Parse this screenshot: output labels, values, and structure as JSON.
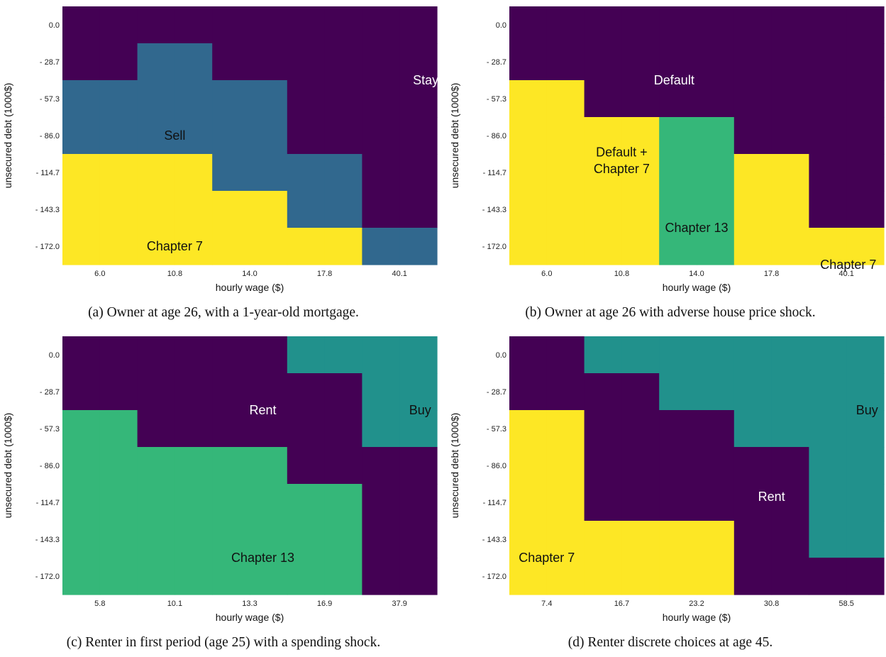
{
  "colors": {
    "Stay": "#440154",
    "Sell": "#31688e",
    "Chapter 7": "#fde725",
    "Default": "#440154",
    "Default + Chapter 7": "#fde725",
    "Chapter 13": "#35b779",
    "Rent": "#440154",
    "Buy": "#21918c"
  },
  "chart_data": [
    {
      "type": "heatmap",
      "caption": "(a) Owner at age 26, with a 1-year-old mortgage.",
      "xlabel": "hourly wage ($)",
      "ylabel": "unsecured debt (1000$)",
      "x_ticks": [
        "6.0",
        "10.8",
        "14.0",
        "17.8",
        "40.1"
      ],
      "y_ticks": [
        "0.0",
        "- 28.7",
        "- 57.3",
        "- 86.0",
        "- 114.7",
        "- 143.3",
        "- 172.0"
      ],
      "categories": [
        "Stay",
        "Sell",
        "Chapter 7"
      ],
      "grid": [
        [
          "Stay",
          "Stay",
          "Stay",
          "Stay",
          "Stay",
          "Stay",
          "Stay",
          "Stay",
          "Stay",
          "Stay"
        ],
        [
          "Stay",
          "Stay",
          "Sell",
          "Sell",
          "Stay",
          "Stay",
          "Stay",
          "Stay",
          "Stay",
          "Stay"
        ],
        [
          "Sell",
          "Sell",
          "Sell",
          "Sell",
          "Sell",
          "Sell",
          "Stay",
          "Stay",
          "Stay",
          "Stay"
        ],
        [
          "Sell",
          "Sell",
          "Sell",
          "Sell",
          "Sell",
          "Sell",
          "Stay",
          "Stay",
          "Stay",
          "Stay"
        ],
        [
          "Chapter 7",
          "Chapter 7",
          "Chapter 7",
          "Chapter 7",
          "Sell",
          "Sell",
          "Sell",
          "Sell",
          "Stay",
          "Stay"
        ],
        [
          "Chapter 7",
          "Chapter 7",
          "Chapter 7",
          "Chapter 7",
          "Chapter 7",
          "Chapter 7",
          "Sell",
          "Sell",
          "Stay",
          "Stay"
        ],
        [
          "Chapter 7",
          "Chapter 7",
          "Chapter 7",
          "Chapter 7",
          "Chapter 7",
          "Chapter 7",
          "Chapter 7",
          "Chapter 7",
          "Sell",
          "Sell"
        ]
      ],
      "annotations": [
        {
          "text": "Stay",
          "x": "40.1",
          "y": "- 28.7",
          "color": "#ffffff"
        },
        {
          "text": "Sell",
          "x": "10.8",
          "y": "- 86.0",
          "color": "#111111"
        },
        {
          "text": "Chapter 7",
          "x": "10.8",
          "y": "- 172.0",
          "color": "#111111"
        }
      ]
    },
    {
      "type": "heatmap",
      "caption": "(b) Owner at age 26 with adverse house price shock.",
      "xlabel": "hourly wage ($)",
      "ylabel": "unsecured debt (1000$)",
      "x_ticks": [
        "6.0",
        "10.8",
        "14.0",
        "17.8",
        "40.1"
      ],
      "y_ticks": [
        "0.0",
        "- 28.7",
        "- 57.3",
        "- 86.0",
        "- 114.7",
        "- 143.3",
        "- 172.0"
      ],
      "categories": [
        "Default",
        "Default + Chapter 7",
        "Chapter 13",
        "Chapter 7"
      ],
      "grid": [
        [
          "Default",
          "Default",
          "Default",
          "Default",
          "Default",
          "Default",
          "Default",
          "Default",
          "Default",
          "Default"
        ],
        [
          "Default",
          "Default",
          "Default",
          "Default",
          "Default",
          "Default",
          "Default",
          "Default",
          "Default",
          "Default"
        ],
        [
          "Default + Chapter 7",
          "Default + Chapter 7",
          "Default",
          "Default",
          "Default",
          "Default",
          "Default",
          "Default",
          "Default",
          "Default"
        ],
        [
          "Default + Chapter 7",
          "Default + Chapter 7",
          "Default + Chapter 7",
          "Default + Chapter 7",
          "Chapter 13",
          "Chapter 13",
          "Default",
          "Default",
          "Default",
          "Default"
        ],
        [
          "Default + Chapter 7",
          "Default + Chapter 7",
          "Default + Chapter 7",
          "Default + Chapter 7",
          "Chapter 13",
          "Chapter 13",
          "Chapter 7",
          "Chapter 7",
          "Default",
          "Default"
        ],
        [
          "Default + Chapter 7",
          "Default + Chapter 7",
          "Default + Chapter 7",
          "Default + Chapter 7",
          "Chapter 13",
          "Chapter 13",
          "Chapter 7",
          "Chapter 7",
          "Default",
          "Default"
        ],
        [
          "Default + Chapter 7",
          "Default + Chapter 7",
          "Default + Chapter 7",
          "Default + Chapter 7",
          "Chapter 13",
          "Chapter 13",
          "Chapter 7",
          "Chapter 7",
          "Chapter 7",
          "Chapter 7"
        ]
      ],
      "annotations": [
        {
          "text": "Default",
          "x": "14.0",
          "y": "- 28.7",
          "color": "#ffffff"
        },
        {
          "text": "Default +",
          "x": "10.8",
          "y": "- 114.7",
          "color": "#111111"
        },
        {
          "text": "Chapter 7",
          "x": "10.8",
          "y": "- 114.7",
          "color": "#111111"
        },
        {
          "text": "Chapter 13",
          "x": "14.0",
          "y": "- 143.3",
          "color": "#111111"
        },
        {
          "text": "Chapter 7",
          "x": "40.1",
          "y": "- 172.0",
          "color": "#111111"
        }
      ]
    },
    {
      "type": "heatmap",
      "caption": "(c) Renter in first period (age 25) with a spending shock.",
      "xlabel": "hourly wage ($)",
      "ylabel": "unsecured debt (1000$)",
      "x_ticks": [
        "5.8",
        "10.1",
        "13.3",
        "16.9",
        "37.9"
      ],
      "y_ticks": [
        "0.0",
        "- 28.7",
        "- 57.3",
        "- 86.0",
        "- 114.7",
        "- 143.3",
        "- 172.0"
      ],
      "categories": [
        "Rent",
        "Buy",
        "Chapter 13"
      ],
      "grid": [
        [
          "Rent",
          "Rent",
          "Rent",
          "Rent",
          "Rent",
          "Rent",
          "Buy",
          "Buy",
          "Buy",
          "Buy"
        ],
        [
          "Rent",
          "Rent",
          "Rent",
          "Rent",
          "Rent",
          "Rent",
          "Rent",
          "Rent",
          "Buy",
          "Buy"
        ],
        [
          "Chapter 13",
          "Chapter 13",
          "Rent",
          "Rent",
          "Rent",
          "Rent",
          "Rent",
          "Rent",
          "Buy",
          "Buy"
        ],
        [
          "Chapter 13",
          "Chapter 13",
          "Chapter 13",
          "Chapter 13",
          "Chapter 13",
          "Chapter 13",
          "Rent",
          "Rent",
          "Rent",
          "Rent"
        ],
        [
          "Chapter 13",
          "Chapter 13",
          "Chapter 13",
          "Chapter 13",
          "Chapter 13",
          "Chapter 13",
          "Chapter 13",
          "Chapter 13",
          "Rent",
          "Rent"
        ],
        [
          "Chapter 13",
          "Chapter 13",
          "Chapter 13",
          "Chapter 13",
          "Chapter 13",
          "Chapter 13",
          "Chapter 13",
          "Chapter 13",
          "Rent",
          "Rent"
        ],
        [
          "Chapter 13",
          "Chapter 13",
          "Chapter 13",
          "Chapter 13",
          "Chapter 13",
          "Chapter 13",
          "Chapter 13",
          "Chapter 13",
          "Rent",
          "Rent"
        ]
      ],
      "annotations": [
        {
          "text": "Rent",
          "x": "13.3",
          "y": "- 28.7",
          "color": "#ffffff"
        },
        {
          "text": "Buy",
          "x": "37.9",
          "y": "- 28.7",
          "color": "#111111"
        },
        {
          "text": "Chapter 13",
          "x": "13.3",
          "y": "- 143.3",
          "color": "#111111"
        }
      ]
    },
    {
      "type": "heatmap",
      "caption": "(d) Renter discrete choices at age 45.",
      "xlabel": "hourly wage ($)",
      "ylabel": "unsecured debt (1000$)",
      "x_ticks": [
        "7.4",
        "16.7",
        "23.2",
        "30.8",
        "58.5"
      ],
      "y_ticks": [
        "0.0",
        "- 28.7",
        "- 57.3",
        "- 86.0",
        "- 114.7",
        "- 143.3",
        "- 172.0"
      ],
      "categories": [
        "Rent",
        "Buy",
        "Chapter 7"
      ],
      "grid": [
        [
          "Rent",
          "Rent",
          "Buy",
          "Buy",
          "Buy",
          "Buy",
          "Buy",
          "Buy",
          "Buy",
          "Buy"
        ],
        [
          "Rent",
          "Rent",
          "Rent",
          "Rent",
          "Buy",
          "Buy",
          "Buy",
          "Buy",
          "Buy",
          "Buy"
        ],
        [
          "Chapter 7",
          "Chapter 7",
          "Rent",
          "Rent",
          "Rent",
          "Rent",
          "Buy",
          "Buy",
          "Buy",
          "Buy"
        ],
        [
          "Chapter 7",
          "Chapter 7",
          "Rent",
          "Rent",
          "Rent",
          "Rent",
          "Rent",
          "Rent",
          "Buy",
          "Buy"
        ],
        [
          "Chapter 7",
          "Chapter 7",
          "Rent",
          "Rent",
          "Rent",
          "Rent",
          "Rent",
          "Rent",
          "Buy",
          "Buy"
        ],
        [
          "Chapter 7",
          "Chapter 7",
          "Chapter 7",
          "Chapter 7",
          "Chapter 7",
          "Chapter 7",
          "Rent",
          "Rent",
          "Buy",
          "Buy"
        ],
        [
          "Chapter 7",
          "Chapter 7",
          "Chapter 7",
          "Chapter 7",
          "Chapter 7",
          "Chapter 7",
          "Rent",
          "Rent",
          "Rent",
          "Rent"
        ]
      ],
      "annotations": [
        {
          "text": "Buy",
          "x": "58.5",
          "y": "- 28.7",
          "color": "#111111"
        },
        {
          "text": "Rent",
          "x": "30.8",
          "y": "- 114.7",
          "color": "#ffffff"
        },
        {
          "text": "Chapter 7",
          "x": "7.4",
          "y": "- 143.3",
          "color": "#111111"
        }
      ]
    }
  ]
}
